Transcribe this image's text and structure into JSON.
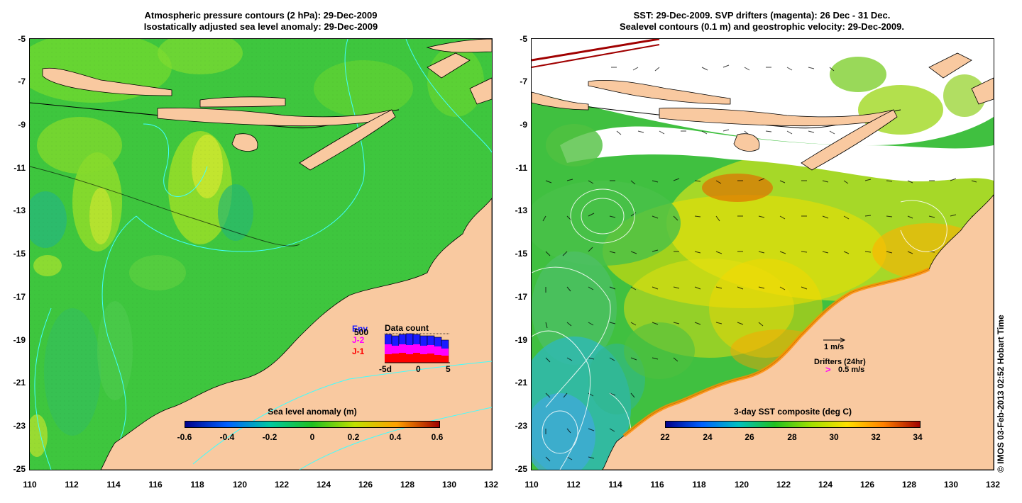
{
  "left_panel": {
    "title_line1": "Atmospheric pressure contours (2 hPa): 29-Dec-2009",
    "title_line2": "Isostatically adjusted sea level anomaly: 29-Dec-2009",
    "colorbar_title": "Sea level anomaly (m)",
    "colorbar_ticks": [
      "-0.6",
      "-0.4",
      "-0.2",
      "0",
      "0.2",
      "0.4",
      "0.6"
    ],
    "data_count": {
      "title": "Data count",
      "legend": [
        {
          "label": "Env",
          "color": "#1a1aff"
        },
        {
          "label": "J-2",
          "color": "#ff00ff"
        },
        {
          "label": "J-1",
          "color": "#ff0000"
        }
      ],
      "count_label": "500",
      "axis_labels": [
        "-5d",
        "0",
        "5"
      ]
    }
  },
  "right_panel": {
    "title_line1": "SST: 29-Dec-2009. SVP drifters (magenta): 26 Dec - 31 Dec.",
    "title_line2": "Sealevel contours (0.1 m) and geostrophic velocity: 29-Dec-2009.",
    "colorbar_title": "3-day SST composite (deg C)",
    "colorbar_ticks": [
      "22",
      "24",
      "26",
      "28",
      "30",
      "32",
      "34"
    ],
    "velocity_scale_label": "1 m/s",
    "drifter_title": "Drifters (24hr)",
    "drifter_scale_label": "0.5 m/s"
  },
  "axes": {
    "y_ticks": [
      "-5",
      "-7",
      "-9",
      "-11",
      "-13",
      "-15",
      "-17",
      "-19",
      "-21",
      "-23",
      "-25"
    ],
    "x_ticks": [
      "110",
      "112",
      "114",
      "116",
      "118",
      "120",
      "122",
      "124",
      "126",
      "128",
      "130",
      "132"
    ],
    "lat_range": [
      -25,
      -5
    ],
    "lon_range": [
      110,
      132
    ]
  },
  "colors": {
    "land": "#f9c9a0",
    "sla_zero": "#37c837",
    "sst_bar": [
      "#00008b",
      "#0060ff",
      "#00c0c0",
      "#20c020",
      "#a0e000",
      "#ffe000",
      "#ff8000",
      "#a00000"
    ],
    "sla_bar": [
      "#00008b",
      "#0080ff",
      "#00c8a0",
      "#20c020",
      "#c0e000",
      "#ffa000",
      "#a00000"
    ]
  },
  "copyright": "© IMOS 03-Feb-2013 02:52 Hobart Time"
}
